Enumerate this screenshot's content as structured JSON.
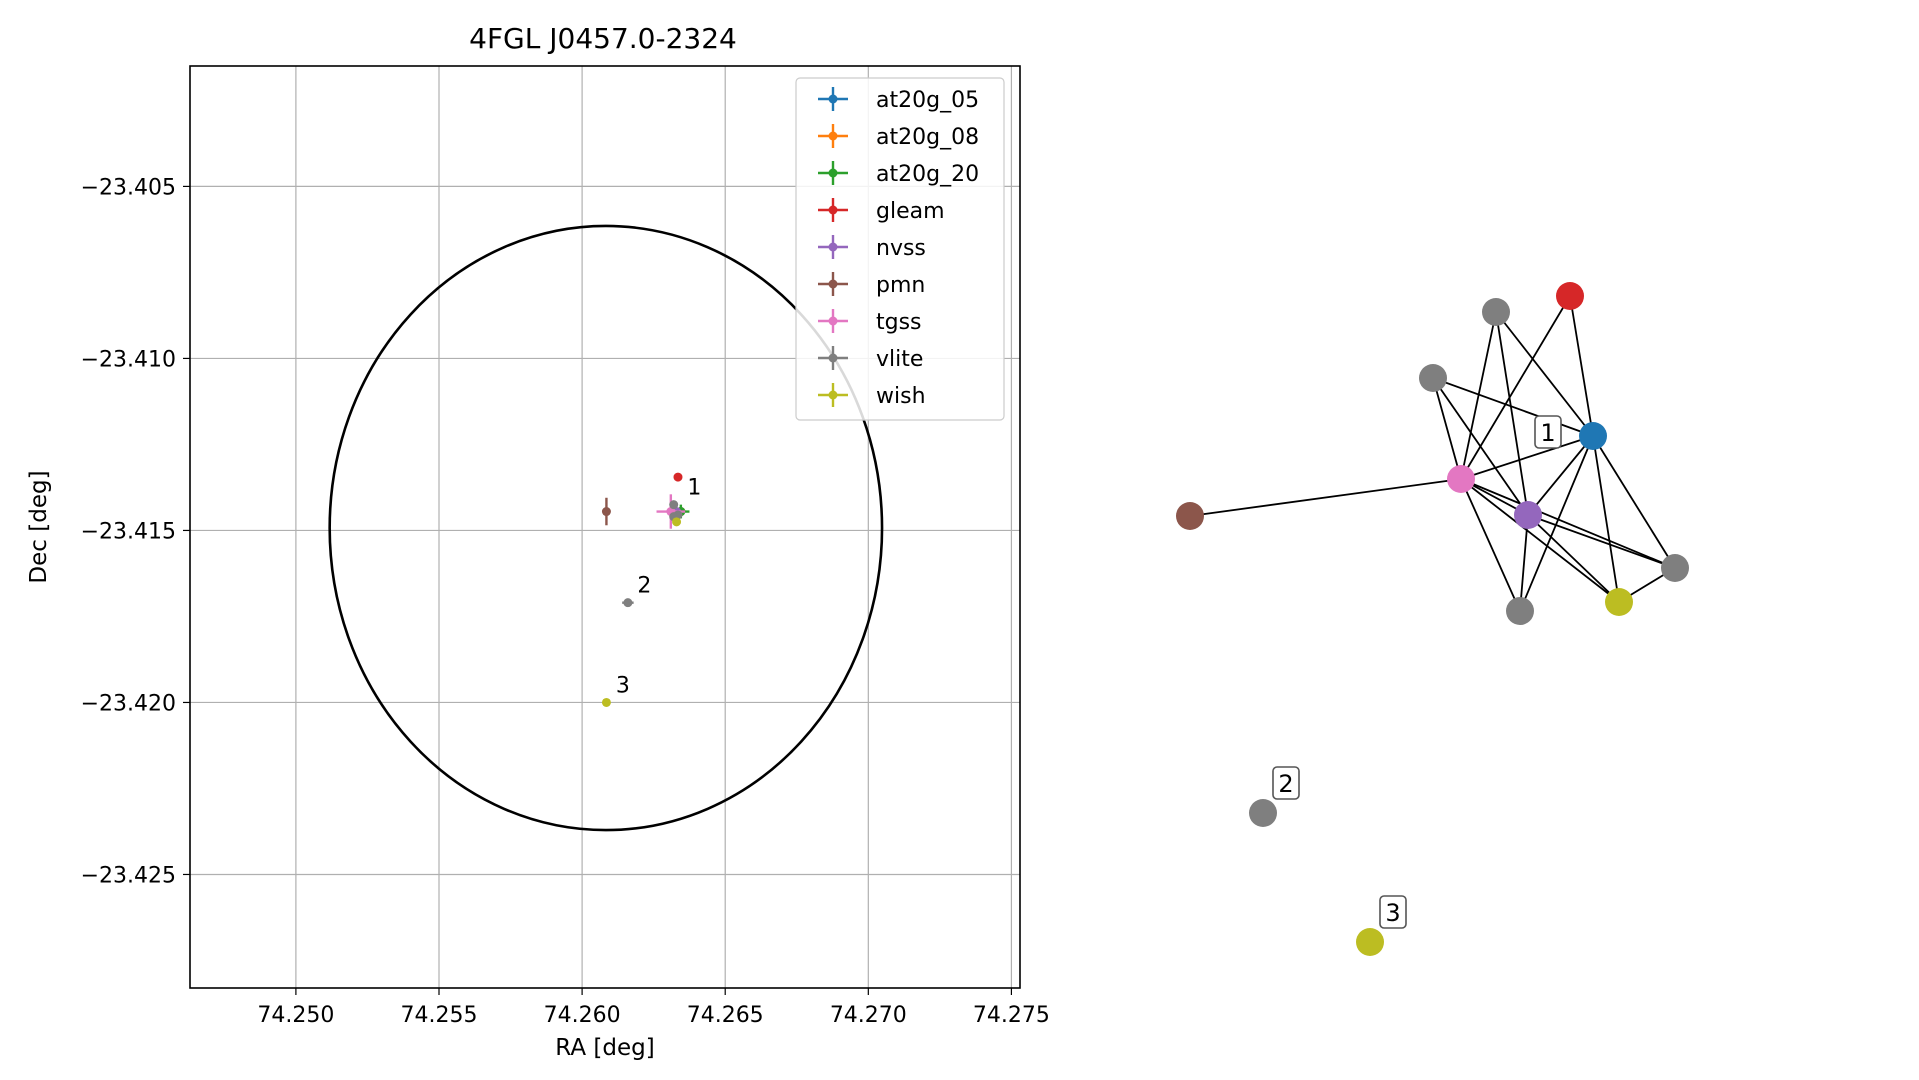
{
  "chart_data": [
    {
      "type": "scatter",
      "title": "4FGL J0457.0-2324",
      "xlabel": "RA [deg]",
      "ylabel": "Dec [deg]",
      "xlim": [
        74.2463,
        74.2753
      ],
      "ylim": [
        -23.4283,
        -23.4015
      ],
      "xticks": [
        74.25,
        74.255,
        74.26,
        74.265,
        74.27,
        74.275
      ],
      "xtick_labels": [
        "74.250",
        "74.255",
        "74.260",
        "74.265",
        "74.270",
        "74.275"
      ],
      "yticks": [
        -23.405,
        -23.41,
        -23.415,
        -23.42,
        -23.425
      ],
      "ytick_labels": [
        "−23.405",
        "−23.410",
        "−23.415",
        "−23.420",
        "−23.425"
      ],
      "grid": true,
      "legend_position": "upper-right",
      "ellipse": {
        "center_ra": 74.26083,
        "center_dec": -23.41493,
        "semi_ra": 0.00965,
        "semi_dec": 0.00878,
        "color": "#000000"
      },
      "series": [
        {
          "name": "at20g_05",
          "color": "#1f77b4",
          "points": [
            {
              "x": 74.26345,
              "y": -23.41445,
              "xerr": 0.0001,
              "yerr": 0.0001
            }
          ]
        },
        {
          "name": "at20g_08",
          "color": "#ff7f0e",
          "points": [
            {
              "x": 74.26345,
              "y": -23.41445,
              "xerr": 0.0001,
              "yerr": 0.0001
            }
          ]
        },
        {
          "name": "at20g_20",
          "color": "#2ca02c",
          "points": [
            {
              "x": 74.26345,
              "y": -23.41445,
              "xerr": 0.0003,
              "yerr": 0.0002
            }
          ]
        },
        {
          "name": "gleam",
          "color": "#d62728",
          "points": [
            {
              "x": 74.26335,
              "y": -23.41345,
              "xerr": 0.0001,
              "yerr": 0.0001
            }
          ]
        },
        {
          "name": "nvss",
          "color": "#9467bd",
          "points": [
            {
              "x": 74.2633,
              "y": -23.41445,
              "xerr": 0.0001,
              "yerr": 0.0001
            }
          ]
        },
        {
          "name": "pmn",
          "color": "#8c564b",
          "points": [
            {
              "x": 74.26085,
              "y": -23.41445,
              "xerr": 0.0001,
              "yerr": 0.0004
            }
          ]
        },
        {
          "name": "tgss",
          "color": "#e377c2",
          "points": [
            {
              "x": 74.2631,
              "y": -23.41445,
              "xerr": 0.0005,
              "yerr": 0.0005
            }
          ]
        },
        {
          "name": "vlite",
          "color": "#7f7f7f",
          "points": [
            {
              "x": 74.2632,
              "y": -23.41425,
              "xerr": 0.0001,
              "yerr": 0.0001
            },
            {
              "x": 74.26335,
              "y": -23.41455,
              "xerr": 0.0001,
              "yerr": 0.0001
            },
            {
              "x": 74.2632,
              "y": -23.4146,
              "xerr": 0.0001,
              "yerr": 0.0001
            },
            {
              "x": 74.2616,
              "y": -23.4171,
              "xerr": 0.0002,
              "yerr": 0.0001
            }
          ]
        },
        {
          "name": "wish",
          "color": "#bcbd22",
          "points": [
            {
              "x": 74.2633,
              "y": -23.41475,
              "xerr": 0.0001,
              "yerr": 0.0001
            },
            {
              "x": 74.26085,
              "y": -23.42,
              "xerr": 0.0001,
              "yerr": 0.0001
            }
          ]
        }
      ],
      "annotations": [
        {
          "text": "1",
          "x": 74.2634,
          "y": -23.41425
        },
        {
          "text": "2",
          "x": 74.26165,
          "y": -23.4171
        },
        {
          "text": "3",
          "x": 74.2609,
          "y": -23.42
        }
      ]
    },
    {
      "type": "network",
      "nodes": [
        {
          "id": "brown",
          "color": "#8c564b"
        },
        {
          "id": "pink",
          "color": "#e377c2"
        },
        {
          "id": "blue",
          "color": "#1f77b4"
        },
        {
          "id": "red",
          "color": "#d62728"
        },
        {
          "id": "gray_a",
          "color": "#7f7f7f"
        },
        {
          "id": "gray_b",
          "color": "#7f7f7f"
        },
        {
          "id": "purple",
          "color": "#9467bd"
        },
        {
          "id": "gray_c",
          "color": "#7f7f7f"
        },
        {
          "id": "olive",
          "color": "#bcbd22"
        },
        {
          "id": "gray_d",
          "color": "#7f7f7f"
        },
        {
          "id": "gray_2",
          "color": "#7f7f7f"
        },
        {
          "id": "olive_3",
          "color": "#bcbd22"
        }
      ],
      "edges": [
        [
          "brown",
          "pink"
        ],
        [
          "pink",
          "blue"
        ],
        [
          "pink",
          "purple"
        ],
        [
          "pink",
          "gray_a"
        ],
        [
          "pink",
          "gray_b"
        ],
        [
          "pink",
          "red"
        ],
        [
          "pink",
          "gray_c"
        ],
        [
          "pink",
          "olive"
        ],
        [
          "pink",
          "gray_d"
        ],
        [
          "blue",
          "purple"
        ],
        [
          "blue",
          "gray_a"
        ],
        [
          "blue",
          "gray_b"
        ],
        [
          "blue",
          "red"
        ],
        [
          "blue",
          "gray_c"
        ],
        [
          "blue",
          "olive"
        ],
        [
          "blue",
          "gray_d"
        ],
        [
          "purple",
          "gray_a"
        ],
        [
          "purple",
          "gray_b"
        ],
        [
          "purple",
          "gray_c"
        ],
        [
          "purple",
          "olive"
        ],
        [
          "purple",
          "gray_d"
        ],
        [
          "olive",
          "gray_d"
        ]
      ],
      "labels": [
        {
          "text": "1",
          "node": "blue"
        },
        {
          "text": "2",
          "node": "gray_2"
        },
        {
          "text": "3",
          "node": "olive_3"
        }
      ]
    }
  ]
}
